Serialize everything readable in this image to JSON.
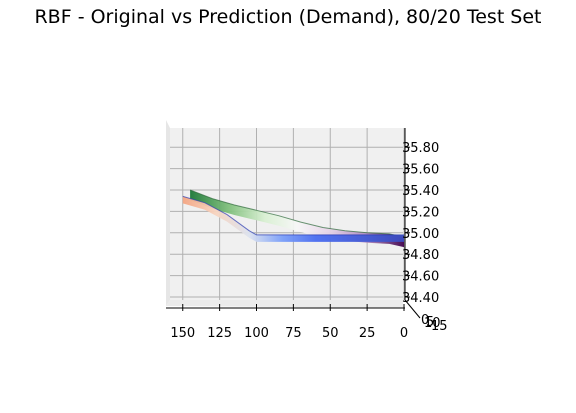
{
  "chart_data": {
    "type": "surface3d",
    "title": "RBF - Original vs Prediction (Demand), 80/20 Test Set",
    "xlabel": "",
    "ylabel": "",
    "zlabel": "",
    "view": "elevation ~0, azimuth ~90 (side view along y)",
    "grid": true,
    "x_ticks": [
      "150",
      "125",
      "100",
      "75",
      "50",
      "25",
      "0"
    ],
    "y_ticks": [
      "0",
      "5",
      "10",
      "15"
    ],
    "z_ticks": [
      "35.80",
      "35.60",
      "35.40",
      "35.20",
      "35.00",
      "34.80",
      "34.60",
      "34.40"
    ],
    "xlim": [
      0,
      160
    ],
    "zlim": [
      34.35,
      35.95
    ],
    "series": [
      {
        "colormap": "PRGn",
        "x": [
          145,
          130,
          115,
          100,
          85,
          70,
          55,
          40,
          25,
          10,
          0
        ],
        "z": [
          35.4,
          35.32,
          35.26,
          35.21,
          35.16,
          35.1,
          35.05,
          35.02,
          35.0,
          34.99,
          34.96
        ]
      },
      {
        "colormap": "coolwarm",
        "x": [
          150,
          135,
          120,
          105,
          100,
          85,
          70,
          50,
          25,
          0
        ],
        "z": [
          35.34,
          35.28,
          35.17,
          35.02,
          34.98,
          34.98,
          34.98,
          34.98,
          34.98,
          34.98
        ]
      }
    ]
  }
}
